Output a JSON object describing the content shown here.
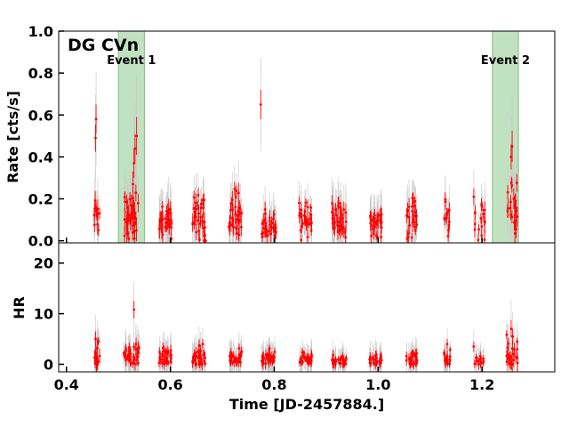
{
  "chart_data": {
    "type": "scatter",
    "title": "DG CVn",
    "xlabel": "Time [JD-2457884.]",
    "xlim": [
      0.385,
      1.34
    ],
    "x_ticks": [
      "0.4",
      "0.6",
      "0.8",
      "1.0",
      "1.2"
    ],
    "x_tick_values": [
      0.4,
      0.6,
      0.8,
      1.0,
      1.2
    ],
    "colors": {
      "points": "#ff0000",
      "errorbars_gray": "#c8c8c8",
      "event_band": "#9fd39f",
      "event_band_edge": "#7fbf7f"
    },
    "events": [
      {
        "label": "Event 1",
        "start": 0.5,
        "end": 0.55
      },
      {
        "label": "Event 2",
        "start": 1.22,
        "end": 1.27
      }
    ],
    "panels": [
      {
        "name": "rate",
        "ylabel": "Rate [cts/s]",
        "ylim": [
          -0.01,
          1.0
        ],
        "y_ticks": [
          "0.0",
          "0.2",
          "0.4",
          "0.6",
          "0.8",
          "1.0"
        ],
        "y_tick_values": [
          0.0,
          0.2,
          0.4,
          0.6,
          0.8,
          1.0
        ],
        "clusters": [
          {
            "x": 0.458,
            "width": 0.012,
            "mean": 0.13,
            "spread": 0.05,
            "err": 0.07,
            "n": 12,
            "peaks": [
              [
                0.456,
                0.49,
                0.13
              ],
              [
                0.457,
                0.58,
                0.14
              ]
            ]
          },
          {
            "x": 0.525,
            "width": 0.032,
            "mean": 0.12,
            "spread": 0.06,
            "err": 0.08,
            "n": 40,
            "peaks": [
              [
                0.53,
                0.37,
                0.14
              ],
              [
                0.532,
                0.44,
                0.14
              ],
              [
                0.528,
                0.27,
                0.12
              ],
              [
                0.535,
                0.5,
                0.18
              ]
            ]
          },
          {
            "x": 0.59,
            "width": 0.025,
            "mean": 0.1,
            "spread": 0.04,
            "err": 0.07,
            "n": 32,
            "peaks": []
          },
          {
            "x": 0.655,
            "width": 0.025,
            "mean": 0.11,
            "spread": 0.05,
            "err": 0.07,
            "n": 32,
            "peaks": [
              [
                0.668,
                0.0,
                0.02
              ]
            ]
          },
          {
            "x": 0.725,
            "width": 0.025,
            "mean": 0.12,
            "spread": 0.05,
            "err": 0.07,
            "n": 34,
            "peaks": []
          },
          {
            "x": 0.79,
            "width": 0.028,
            "mean": 0.07,
            "spread": 0.03,
            "err": 0.06,
            "n": 36,
            "peaks": [
              [
                0.774,
                0.65,
                0.14
              ]
            ]
          },
          {
            "x": 0.86,
            "width": 0.025,
            "mean": 0.1,
            "spread": 0.04,
            "err": 0.06,
            "n": 32,
            "peaks": []
          },
          {
            "x": 0.925,
            "width": 0.028,
            "mean": 0.1,
            "spread": 0.04,
            "err": 0.07,
            "n": 36,
            "peaks": []
          },
          {
            "x": 0.995,
            "width": 0.025,
            "mean": 0.08,
            "spread": 0.03,
            "err": 0.06,
            "n": 32,
            "peaks": []
          },
          {
            "x": 1.065,
            "width": 0.022,
            "mean": 0.1,
            "spread": 0.05,
            "err": 0.07,
            "n": 24,
            "peaks": []
          },
          {
            "x": 1.133,
            "width": 0.012,
            "mean": 0.09,
            "spread": 0.04,
            "err": 0.06,
            "n": 14,
            "peaks": []
          },
          {
            "x": 1.195,
            "width": 0.022,
            "mean": 0.1,
            "spread": 0.06,
            "err": 0.07,
            "n": 16,
            "peaks": [
              [
                1.184,
                0.21,
                0.08
              ]
            ]
          },
          {
            "x": 1.258,
            "width": 0.022,
            "mean": 0.15,
            "spread": 0.07,
            "err": 0.08,
            "n": 20,
            "peaks": [
              [
                1.256,
                0.4,
                0.12
              ],
              [
                1.258,
                0.45,
                0.15
              ],
              [
                1.261,
                0.2,
                0.1
              ]
            ]
          }
        ]
      },
      {
        "name": "hr",
        "ylabel": "HR",
        "ylim": [
          -1.5,
          24.0
        ],
        "y_ticks": [
          "0",
          "10",
          "20"
        ],
        "y_tick_values": [
          0,
          10,
          20
        ],
        "clusters": [
          {
            "x": 0.458,
            "width": 0.012,
            "mean": 2.0,
            "spread": 1.8,
            "err": 2.5,
            "n": 14,
            "peaks": [
              [
                0.456,
                5.0,
                3.0
              ]
            ]
          },
          {
            "x": 0.525,
            "width": 0.032,
            "mean": 1.5,
            "spread": 1.2,
            "err": 2.0,
            "n": 40,
            "peaks": [
              [
                0.53,
                10.8,
                3.5
              ],
              [
                0.534,
                4.0,
                2.5
              ]
            ]
          },
          {
            "x": 0.59,
            "width": 0.025,
            "mean": 1.2,
            "spread": 1.0,
            "err": 1.8,
            "n": 34,
            "peaks": []
          },
          {
            "x": 0.655,
            "width": 0.025,
            "mean": 1.2,
            "spread": 1.0,
            "err": 1.8,
            "n": 34,
            "peaks": [
              [
                0.662,
                4.0,
                2.0
              ]
            ]
          },
          {
            "x": 0.725,
            "width": 0.025,
            "mean": 1.0,
            "spread": 0.8,
            "err": 1.6,
            "n": 34,
            "peaks": []
          },
          {
            "x": 0.79,
            "width": 0.028,
            "mean": 0.9,
            "spread": 0.8,
            "err": 1.6,
            "n": 36,
            "peaks": []
          },
          {
            "x": 0.86,
            "width": 0.025,
            "mean": 0.9,
            "spread": 0.7,
            "err": 1.5,
            "n": 32,
            "peaks": []
          },
          {
            "x": 0.925,
            "width": 0.028,
            "mean": 0.6,
            "spread": 0.6,
            "err": 1.4,
            "n": 34,
            "peaks": []
          },
          {
            "x": 0.995,
            "width": 0.025,
            "mean": 0.8,
            "spread": 0.7,
            "err": 1.5,
            "n": 32,
            "peaks": []
          },
          {
            "x": 1.065,
            "width": 0.022,
            "mean": 1.0,
            "spread": 0.8,
            "err": 1.6,
            "n": 26,
            "peaks": []
          },
          {
            "x": 1.133,
            "width": 0.012,
            "mean": 1.0,
            "spread": 1.0,
            "err": 1.7,
            "n": 14,
            "peaks": [
              [
                1.133,
                4.0,
                2.0
              ]
            ]
          },
          {
            "x": 1.195,
            "width": 0.022,
            "mean": 0.8,
            "spread": 0.8,
            "err": 1.5,
            "n": 16,
            "peaks": [
              [
                1.184,
                3.5,
                2.0
              ]
            ]
          },
          {
            "x": 1.258,
            "width": 0.022,
            "mean": 2.0,
            "spread": 1.8,
            "err": 2.5,
            "n": 24,
            "peaks": [
              [
                1.256,
                7.0,
                3.5
              ],
              [
                1.259,
                5.5,
                3.0
              ]
            ]
          }
        ]
      }
    ]
  }
}
